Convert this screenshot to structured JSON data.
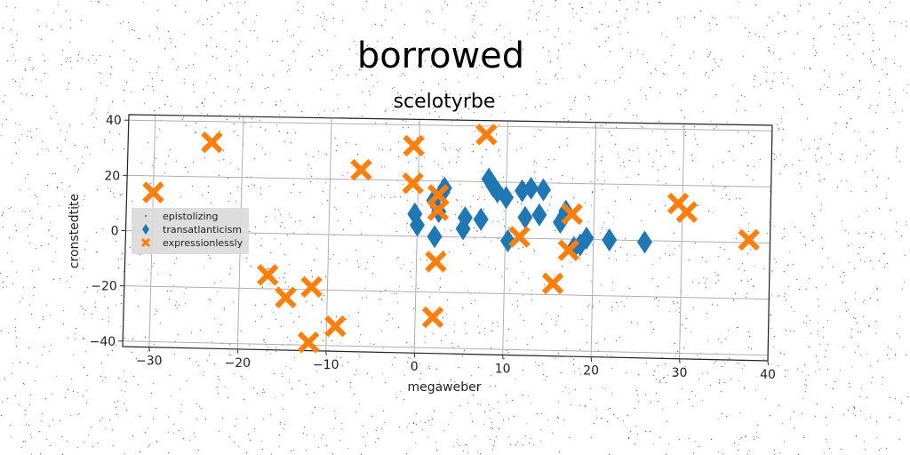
{
  "chart_data": {
    "type": "scatter",
    "title": "borrowed",
    "subtitle": "scelotyrbe",
    "xlabel": "megaweber",
    "ylabel": "cronstedtite",
    "xlim": [
      -33,
      40
    ],
    "ylim": [
      -42,
      42
    ],
    "xticks": [
      -30,
      -20,
      -10,
      0,
      10,
      20,
      30,
      40
    ],
    "yticks": [
      -40,
      -20,
      0,
      20,
      40
    ],
    "xtick_labels": [
      "−30",
      "−20",
      "−10",
      "0",
      "10",
      "20",
      "30",
      "40"
    ],
    "ytick_labels": [
      "−40",
      "−20",
      "0",
      "20",
      "40"
    ],
    "grid": true,
    "legend_position": "center-left",
    "series": [
      {
        "name": "epistolizing",
        "marker": "point",
        "color": "#555555",
        "points": []
      },
      {
        "name": "transatlanticism",
        "marker": "diamond",
        "color": "#1f77b4",
        "points": [
          [
            -0.3,
            8
          ],
          [
            0,
            4
          ],
          [
            1.8,
            13
          ],
          [
            2,
            0
          ],
          [
            2.4,
            9
          ],
          [
            2.8,
            16
          ],
          [
            3,
            17.5
          ],
          [
            5.2,
            3
          ],
          [
            5.4,
            7
          ],
          [
            7.2,
            6.5
          ],
          [
            8,
            21
          ],
          [
            8.5,
            18.5
          ],
          [
            9,
            16.5
          ],
          [
            10,
            14.5
          ],
          [
            10.3,
            -1
          ],
          [
            11.8,
            17
          ],
          [
            12.2,
            7.5
          ],
          [
            12.8,
            18
          ],
          [
            13.8,
            8.5
          ],
          [
            14.2,
            17.5
          ],
          [
            16.2,
            6
          ],
          [
            16.8,
            10
          ],
          [
            17.8,
            -3
          ],
          [
            18.5,
            -2
          ],
          [
            19.2,
            0.5
          ],
          [
            21.8,
            0
          ],
          [
            25.8,
            -0.5
          ]
        ]
      },
      {
        "name": "expressionlessly",
        "marker": "x",
        "color": "#ff7f0e",
        "points": [
          [
            -30,
            14
          ],
          [
            -23.5,
            32.5
          ],
          [
            -6.5,
            23.5
          ],
          [
            -0.6,
            32.5
          ],
          [
            -0.6,
            19
          ],
          [
            7.6,
            37
          ],
          [
            2.3,
            15
          ],
          [
            2.3,
            9.5
          ],
          [
            2.2,
            -9
          ],
          [
            2,
            -29
          ],
          [
            -16.8,
            -15
          ],
          [
            -14.7,
            -23
          ],
          [
            -11.8,
            -19
          ],
          [
            -12,
            -39
          ],
          [
            -9,
            -33
          ],
          [
            11.6,
            0.5
          ],
          [
            15.5,
            -16
          ],
          [
            17.2,
            -4
          ],
          [
            17.5,
            9
          ],
          [
            29.5,
            13.5
          ],
          [
            30.5,
            10.5
          ],
          [
            37.6,
            1
          ]
        ]
      }
    ]
  }
}
